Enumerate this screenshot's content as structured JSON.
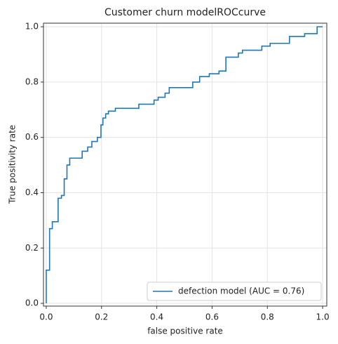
{
  "chart_data": {
    "type": "line",
    "title": "Customer churn modelROCcurve",
    "x_label": "false positive rate",
    "y_label": "True positivity rate",
    "x": [
      0,
      0,
      0.012,
      0.012,
      0.022,
      0.022,
      0.043,
      0.043,
      0.055,
      0.055,
      0.065,
      0.065,
      0.075,
      0.075,
      0.085,
      0.085,
      0.13,
      0.13,
      0.15,
      0.15,
      0.165,
      0.165,
      0.185,
      0.185,
      0.198,
      0.198,
      0.205,
      0.205,
      0.215,
      0.215,
      0.225,
      0.225,
      0.25,
      0.25,
      0.335,
      0.335,
      0.39,
      0.39,
      0.405,
      0.405,
      0.43,
      0.43,
      0.445,
      0.445,
      0.53,
      0.53,
      0.555,
      0.555,
      0.59,
      0.59,
      0.625,
      0.625,
      0.65,
      0.65,
      0.695,
      0.695,
      0.71,
      0.71,
      0.78,
      0.78,
      0.81,
      0.81,
      0.88,
      0.88,
      0.935,
      0.935,
      0.98,
      0.98,
      1.0
    ],
    "series": [
      {
        "name": "defection model (AUC = 0.76)",
        "color": "#1f77b4",
        "values": [
          0,
          0.12,
          0.12,
          0.27,
          0.27,
          0.295,
          0.295,
          0.38,
          0.38,
          0.39,
          0.39,
          0.45,
          0.45,
          0.5,
          0.5,
          0.525,
          0.525,
          0.55,
          0.55,
          0.565,
          0.565,
          0.585,
          0.585,
          0.6,
          0.6,
          0.645,
          0.645,
          0.67,
          0.67,
          0.685,
          0.685,
          0.695,
          0.695,
          0.705,
          0.705,
          0.72,
          0.72,
          0.735,
          0.735,
          0.745,
          0.745,
          0.76,
          0.76,
          0.78,
          0.78,
          0.8,
          0.8,
          0.82,
          0.82,
          0.83,
          0.83,
          0.84,
          0.84,
          0.89,
          0.89,
          0.905,
          0.905,
          0.915,
          0.915,
          0.93,
          0.93,
          0.94,
          0.94,
          0.965,
          0.965,
          0.975,
          0.975,
          1.0,
          1.0
        ]
      }
    ],
    "xlim": [
      -0.01,
      1.015
    ],
    "ylim": [
      -0.01,
      1.013
    ],
    "xticks": [
      {
        "value": 0,
        "label": "0.0"
      },
      0.2,
      0.4,
      0.6,
      0.8,
      {
        "value": 1,
        "label": "1.0"
      }
    ],
    "yticks": [
      {
        "value": 0,
        "label": "0.0"
      },
      0.2,
      0.4,
      0.6,
      0.8,
      {
        "value": 1,
        "label": "1.0"
      }
    ],
    "grid": true,
    "legend_position": "lower right"
  }
}
